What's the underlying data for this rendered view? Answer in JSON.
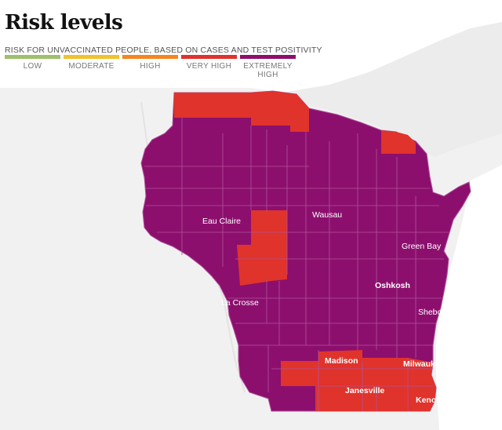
{
  "title": "Risk levels",
  "legend": {
    "caption": "RISK FOR UNVACCINATED PEOPLE, BASED ON CASES AND TEST POSITIVITY",
    "items": [
      {
        "label": "LOW",
        "color": "#9fc06b"
      },
      {
        "label": "MODERATE",
        "color": "#f2c12e"
      },
      {
        "label": "HIGH",
        "color": "#f5861f"
      },
      {
        "label": "VERY HIGH",
        "color": "#e0332b"
      },
      {
        "label": "EXTREMELY HIGH",
        "color": "#8c0f6e"
      }
    ]
  },
  "cities": [
    {
      "name": "Eau Claire",
      "bold": false
    },
    {
      "name": "Wausau",
      "bold": false
    },
    {
      "name": "Green Bay",
      "bold": false
    },
    {
      "name": "Oshkosh",
      "bold": true
    },
    {
      "name": "La Crosse",
      "bold": false
    },
    {
      "name": "Sheboygan",
      "bold": false
    },
    {
      "name": "Madison",
      "bold": true
    },
    {
      "name": "Milwaukee",
      "bold": true
    },
    {
      "name": "Janesville",
      "bold": true
    },
    {
      "name": "Kenosha",
      "bold": true
    }
  ],
  "colors": {
    "land": "#f0f0f0",
    "water": "#ffffff",
    "state_fill": "#8c0f6e",
    "very_high": "#e0332b",
    "county_border": "#b0529a"
  }
}
